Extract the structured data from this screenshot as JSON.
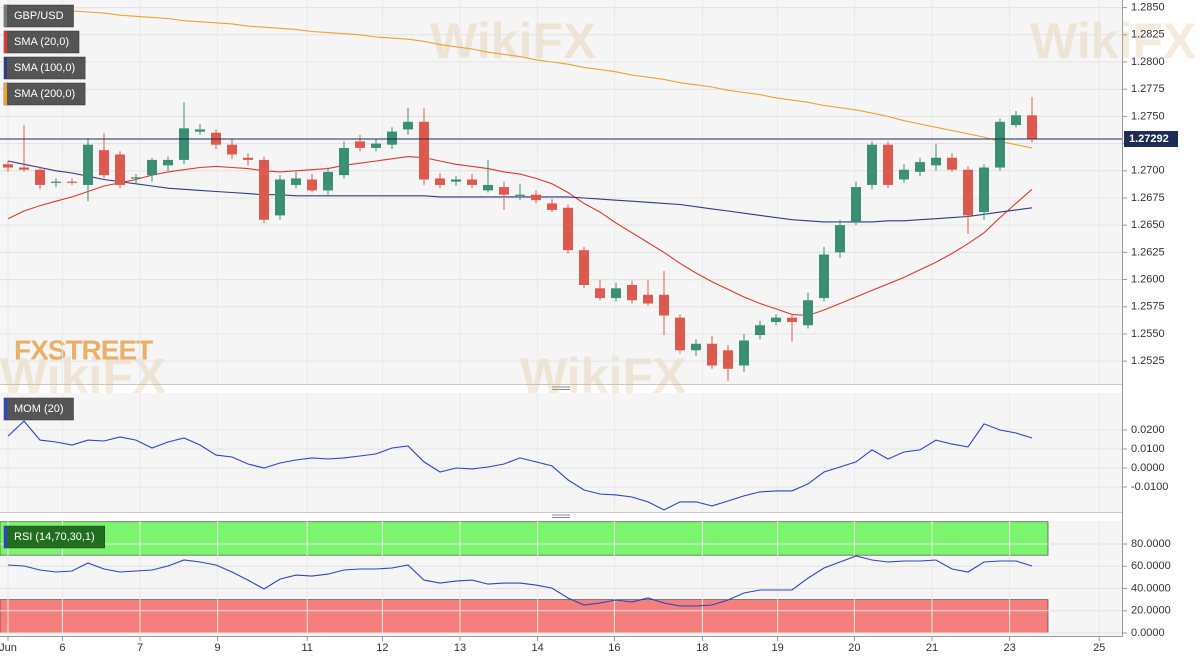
{
  "chart_data": [
    {
      "type": "candlestick",
      "title": "GBP/USD",
      "watermark": "WikiFX",
      "logo": "FXSTREET",
      "xlim": [
        -0.5,
        69.5
      ],
      "ylim": [
        1.2504,
        1.2857
      ],
      "grid": true,
      "up_color": "#3b8f73",
      "down_color": "#df5a4e",
      "last_price": 1.27292,
      "yticks": [
        {
          "value": 1.285,
          "label": "1.2850"
        },
        1.2825,
        {
          "value": 1.28,
          "label": "1.2800"
        },
        1.2775,
        {
          "value": 1.275,
          "label": "1.2750"
        },
        1.2725,
        {
          "value": 1.27,
          "label": "1.2700"
        },
        1.2675,
        {
          "value": 1.265,
          "label": "1.2650"
        },
        1.2625,
        {
          "value": 1.26,
          "label": "1.2600"
        },
        1.2575,
        {
          "value": 1.255,
          "label": "1.2550"
        },
        1.2525
      ],
      "open": [
        1.2706,
        1.2703,
        1.2701,
        1.2689,
        1.269,
        1.2687,
        1.2719,
        1.2715,
        1.2693,
        1.2696,
        1.2705,
        1.271,
        1.2736,
        1.2735,
        1.2724,
        1.2712,
        1.271,
        1.2659,
        1.2687,
        1.2692,
        1.2682,
        1.2696,
        1.2727,
        1.2721,
        1.2724,
        1.2738,
        1.2745,
        1.2693,
        1.269,
        1.2692,
        1.2682,
        1.2685,
        1.2677,
        1.2678,
        1.267,
        1.2666,
        1.2627,
        1.2592,
        1.2583,
        1.2595,
        1.2586,
        1.2586,
        1.2565,
        1.2535,
        1.2541,
        1.2535,
        1.2521,
        1.2549,
        1.2561,
        1.2565,
        1.2558,
        1.2583,
        1.2625,
        1.2653,
        1.2687,
        1.2724,
        1.2692,
        1.2699,
        1.2705,
        1.2712,
        1.2701,
        1.2662,
        1.2703,
        1.2742,
        1.2751
      ],
      "high": [
        1.2709,
        1.2742,
        1.2704,
        1.2693,
        1.2693,
        1.273,
        1.2735,
        1.2718,
        1.2697,
        1.2712,
        1.2713,
        1.2763,
        1.2743,
        1.2738,
        1.2729,
        1.2716,
        1.2713,
        1.2696,
        1.2699,
        1.2697,
        1.2703,
        1.2727,
        1.2733,
        1.2729,
        1.274,
        1.2758,
        1.2758,
        1.2698,
        1.2695,
        1.2697,
        1.271,
        1.269,
        1.2688,
        1.2682,
        1.2674,
        1.2669,
        1.263,
        1.26,
        1.2597,
        1.2599,
        1.26,
        1.2608,
        1.2568,
        1.2545,
        1.2548,
        1.254,
        1.255,
        1.2562,
        1.2568,
        1.2568,
        1.2588,
        1.263,
        1.2655,
        1.269,
        1.2727,
        1.2727,
        1.2706,
        1.2712,
        1.2725,
        1.2716,
        1.2704,
        1.2706,
        1.2748,
        1.2755,
        1.2768
      ],
      "low": [
        1.2699,
        1.2699,
        1.2683,
        1.2685,
        1.2687,
        1.2672,
        1.2693,
        1.2684,
        1.2688,
        1.269,
        1.27,
        1.2706,
        1.2733,
        1.272,
        1.2711,
        1.2705,
        1.2652,
        1.2655,
        1.2684,
        1.268,
        1.2678,
        1.2693,
        1.2718,
        1.2718,
        1.272,
        1.2733,
        1.2687,
        1.2684,
        1.2686,
        1.2684,
        1.268,
        1.2664,
        1.2673,
        1.267,
        1.2662,
        1.2624,
        1.2592,
        1.2581,
        1.258,
        1.2578,
        1.2576,
        1.2549,
        1.2532,
        1.253,
        1.2518,
        1.2507,
        1.2515,
        1.2545,
        1.2558,
        1.2543,
        1.2555,
        1.258,
        1.262,
        1.265,
        1.2683,
        1.2684,
        1.2689,
        1.2695,
        1.27,
        1.2699,
        1.2642,
        1.2655,
        1.27,
        1.274,
        1.2726
      ],
      "close": [
        1.2703,
        1.2701,
        1.2687,
        1.269,
        1.2689,
        1.2724,
        1.2696,
        1.2687,
        1.2694,
        1.271,
        1.271,
        1.2739,
        1.2738,
        1.2724,
        1.2715,
        1.271,
        1.2655,
        1.2692,
        1.2693,
        1.2682,
        1.2699,
        1.2721,
        1.2721,
        1.2725,
        1.2736,
        1.2745,
        1.2692,
        1.2687,
        1.2692,
        1.2687,
        1.2687,
        1.2678,
        1.2678,
        1.2673,
        1.2664,
        1.2627,
        1.2595,
        1.2583,
        1.2592,
        1.2581,
        1.2578,
        1.2567,
        1.2535,
        1.2541,
        1.2521,
        1.2518,
        1.2544,
        1.2558,
        1.2565,
        1.2561,
        1.2581,
        1.2623,
        1.265,
        1.2685,
        1.2724,
        1.2687,
        1.2701,
        1.2708,
        1.2712,
        1.2701,
        1.2659,
        1.2703,
        1.2745,
        1.2751,
        1.2729
      ],
      "series": [
        {
          "name": "SMA (20,0)",
          "color": "#e0392b",
          "values": [
            1.2656,
            1.2663,
            1.2668,
            1.2672,
            1.2676,
            1.2681,
            1.2686,
            1.2689,
            1.2692,
            1.2696,
            1.2699,
            1.2701,
            1.2703,
            1.2704,
            1.2703,
            1.2702,
            1.27,
            1.2699,
            1.27,
            1.2701,
            1.2702,
            1.2705,
            1.2707,
            1.2709,
            1.2711,
            1.2713,
            1.2712,
            1.2709,
            1.2706,
            1.2704,
            1.2702,
            1.2699,
            1.2697,
            1.2693,
            1.2688,
            1.268,
            1.267,
            1.2662,
            1.2652,
            1.2643,
            1.2634,
            1.2625,
            1.2615,
            1.2606,
            1.2598,
            1.2591,
            1.2584,
            1.2578,
            1.2573,
            1.2568,
            1.2567,
            1.2572,
            1.2578,
            1.2584,
            1.259,
            1.2596,
            1.2602,
            1.2609,
            1.2616,
            1.2624,
            1.2633,
            1.2643,
            1.2657,
            1.267,
            1.2683
          ]
        },
        {
          "name": "SMA (100,0)",
          "color": "#2f3b86",
          "values": [
            1.2709,
            1.2706,
            1.2703,
            1.27,
            1.2698,
            1.2695,
            1.2692,
            1.269,
            1.2688,
            1.2686,
            1.2684,
            1.2683,
            1.2682,
            1.2681,
            1.268,
            1.2679,
            1.2678,
            1.2678,
            1.2677,
            1.2677,
            1.2677,
            1.2677,
            1.2677,
            1.2677,
            1.2677,
            1.2677,
            1.2677,
            1.2676,
            1.2676,
            1.2676,
            1.2676,
            1.2676,
            1.2676,
            1.2676,
            1.2676,
            1.2676,
            1.2675,
            1.2674,
            1.2673,
            1.2672,
            1.2671,
            1.267,
            1.2669,
            1.2667,
            1.2665,
            1.2663,
            1.2661,
            1.2659,
            1.2657,
            1.2655,
            1.2654,
            1.2653,
            1.2653,
            1.2653,
            1.2653,
            1.2654,
            1.2654,
            1.2655,
            1.2656,
            1.2657,
            1.2658,
            1.266,
            1.2662,
            1.2664,
            1.2666
          ]
        },
        {
          "name": "SMA (200,0)",
          "color": "#f0a030",
          "values": [
            1.2852,
            1.2851,
            1.285,
            1.2849,
            1.2847,
            1.2846,
            1.2845,
            1.2843,
            1.2842,
            1.2841,
            1.284,
            1.2838,
            1.2837,
            1.2836,
            1.2835,
            1.2833,
            1.2832,
            1.2831,
            1.283,
            1.2828,
            1.2827,
            1.2826,
            1.2825,
            1.2823,
            1.2822,
            1.2821,
            1.2819,
            1.2816,
            1.2814,
            1.2812,
            1.2809,
            1.2807,
            1.2805,
            1.2802,
            1.28,
            1.2798,
            1.2795,
            1.2793,
            1.2791,
            1.2788,
            1.2786,
            1.2784,
            1.2781,
            1.2779,
            1.2777,
            1.2774,
            1.2772,
            1.277,
            1.2767,
            1.2765,
            1.2763,
            1.276,
            1.2758,
            1.2756,
            1.2753,
            1.275,
            1.2746,
            1.2743,
            1.274,
            1.2737,
            1.2734,
            1.2731,
            1.2727,
            1.2724,
            1.2721
          ]
        }
      ]
    },
    {
      "type": "line",
      "watermark": "WikiFX",
      "xlim": [
        -0.5,
        69.5
      ],
      "ylim": [
        -0.0232,
        0.0395
      ],
      "grid": true,
      "yticks": [
        {
          "value": 0.02,
          "label": "0.0200"
        },
        {
          "value": 0.01,
          "label": "0.0100"
        },
        {
          "value": 0,
          "label": "0.0000"
        },
        {
          "value": -0.01,
          "label": "-0.0100"
        }
      ],
      "series": [
        {
          "name": "MOM (20)",
          "color": "#2a45c8",
          "values": [
            0.0168,
            0.0247,
            0.0147,
            0.0137,
            0.0121,
            0.0147,
            0.0142,
            0.0163,
            0.0147,
            0.0105,
            0.0137,
            0.0158,
            0.0121,
            0.0068,
            0.0058,
            0.0021,
            0.0,
            0.0026,
            0.0042,
            0.0053,
            0.0047,
            0.0053,
            0.0063,
            0.0074,
            0.0105,
            0.0116,
            0.0032,
            -0.0021,
            0.0,
            -0.0005,
            0.0005,
            0.0021,
            0.0053,
            0.0032,
            0.0011,
            -0.0063,
            -0.0116,
            -0.0137,
            -0.0142,
            -0.0153,
            -0.0179,
            -0.0221,
            -0.0179,
            -0.0179,
            -0.02,
            -0.0174,
            -0.0147,
            -0.0126,
            -0.0121,
            -0.0121,
            -0.0084,
            -0.0021,
            0.0005,
            0.0032,
            0.0095,
            0.0047,
            0.0084,
            0.0095,
            0.0147,
            0.0126,
            0.0111,
            0.0232,
            0.02,
            0.0184,
            0.0158
          ]
        }
      ]
    },
    {
      "type": "line",
      "watermark": "WikiFX",
      "xlim": [
        -0.5,
        69.5
      ],
      "ylim": [
        -2.7,
        100.7
      ],
      "grid": true,
      "overbought_band": [
        70,
        100
      ],
      "overbought_color": "#7cf56e",
      "oversold_band": [
        0,
        30
      ],
      "oversold_color": "#f47f7c",
      "yticks": [
        {
          "value": 80,
          "label": "80.0000"
        },
        {
          "value": 60,
          "label": "60.0000"
        },
        {
          "value": 40,
          "label": "40.0000"
        },
        {
          "value": 20,
          "label": "20.0000"
        },
        {
          "value": 0,
          "label": "0.0000"
        }
      ],
      "xticks": [
        {
          "value": 0,
          "label": "Jun"
        },
        {
          "value": 3.4,
          "label": "6"
        },
        {
          "value": 8.25,
          "label": "7"
        },
        {
          "value": 13.1,
          "label": "9"
        },
        {
          "value": 18.7,
          "label": "11"
        },
        {
          "value": 23.4,
          "label": "12"
        },
        {
          "value": 28.25,
          "label": "13"
        },
        {
          "value": 33.1,
          "label": "14"
        },
        {
          "value": 37.9,
          "label": "16"
        },
        {
          "value": 43.4,
          "label": "18"
        },
        {
          "value": 48.1,
          "label": "19"
        },
        {
          "value": 52.9,
          "label": "20"
        },
        {
          "value": 57.75,
          "label": "21"
        },
        {
          "value": 62.6,
          "label": "23"
        },
        {
          "value": 68.2,
          "label": "25"
        }
      ],
      "series": [
        {
          "name": "RSI (14,70,30,1)",
          "color": "#2a45c8",
          "values": [
            61.1,
            60.2,
            56.6,
            54.8,
            55.7,
            62.9,
            57.5,
            54.8,
            55.7,
            56.6,
            60.2,
            65.6,
            63.8,
            61.1,
            54.8,
            47.6,
            39.6,
            48.5,
            52.1,
            51.2,
            53.0,
            56.6,
            57.5,
            57.5,
            58.4,
            61.1,
            47.6,
            44.9,
            46.7,
            47.6,
            44.0,
            44.9,
            44.9,
            43.1,
            40.4,
            31.5,
            25.2,
            27.0,
            29.7,
            27.9,
            31.5,
            27.0,
            24.3,
            24.3,
            25.2,
            29.7,
            36.0,
            38.7,
            38.7,
            38.7,
            49.4,
            58.4,
            63.8,
            69.2,
            65.6,
            63.8,
            64.7,
            64.7,
            65.6,
            57.5,
            54.8,
            63.8,
            64.7,
            64.7,
            60.2
          ]
        }
      ]
    }
  ]
}
